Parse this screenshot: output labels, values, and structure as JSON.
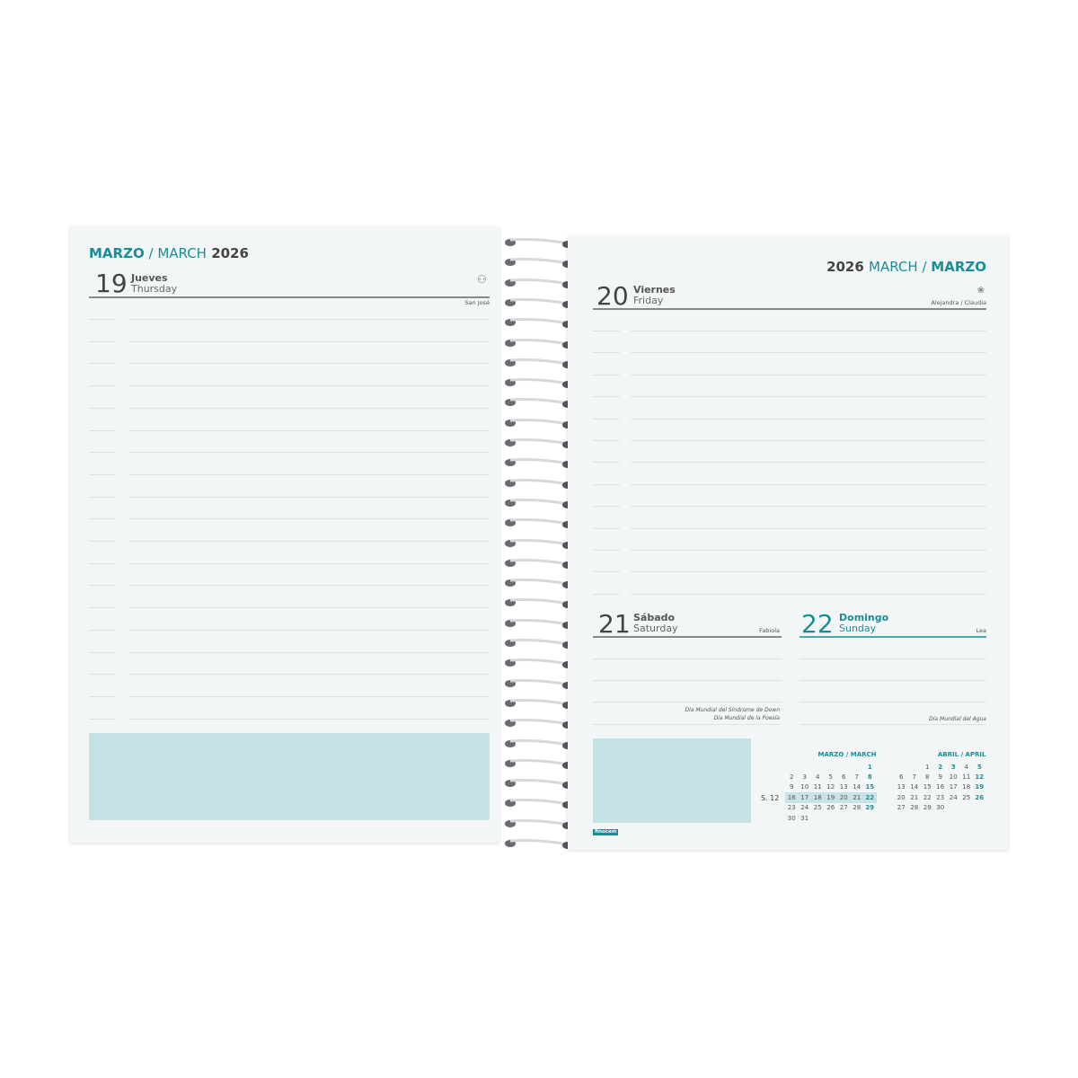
{
  "left_page": {
    "header": {
      "month_es": "MARZO",
      "sep": " / ",
      "month_en": "MARCH",
      "year": "2026"
    },
    "day": {
      "number": "19",
      "name_es": "Jueves",
      "name_en": "Thursday",
      "saint": "San José",
      "icon": "person-icon"
    }
  },
  "right_page": {
    "header": {
      "year": "2026",
      "month_en": "MARCH",
      "sep": " / ",
      "month_es": "MARZO"
    },
    "friday": {
      "number": "20",
      "name_es": "Viernes",
      "name_en": "Friday",
      "saint": "Alejandra / Claudia",
      "icon": "flower-icon"
    },
    "saturday": {
      "number": "21",
      "name_es": "Sábado",
      "name_en": "Saturday",
      "saint": "Fabiola",
      "events": [
        "Día Mundial del Síndrome de Down",
        "Día Mundial de la Poesía"
      ]
    },
    "sunday": {
      "number": "22",
      "name_es": "Domingo",
      "name_en": "Sunday",
      "saint": "Lea",
      "events": [
        "Día Mundial del Agua"
      ]
    },
    "brand": "finocam",
    "week_label": "S. 12",
    "calendars": [
      {
        "title": "MARZO / MARCH",
        "weeks": [
          [
            "",
            "",
            "",
            "",
            "",
            "",
            "1"
          ],
          [
            "2",
            "3",
            "4",
            "5",
            "6",
            "7",
            "8"
          ],
          [
            "9",
            "10",
            "11",
            "12",
            "13",
            "14",
            "15"
          ],
          [
            "16",
            "17",
            "18",
            "19",
            "20",
            "21",
            "22"
          ],
          [
            "23",
            "24",
            "25",
            "26",
            "27",
            "28",
            "29"
          ],
          [
            "30",
            "31",
            "",
            "",
            "",
            "",
            ""
          ]
        ],
        "highlight_week": 3
      },
      {
        "title": "ABRIL / APRIL",
        "weeks": [
          [
            "",
            "",
            "1",
            "2",
            "3",
            "4",
            "5"
          ],
          [
            "6",
            "7",
            "8",
            "9",
            "10",
            "11",
            "12"
          ],
          [
            "13",
            "14",
            "15",
            "16",
            "17",
            "18",
            "19"
          ],
          [
            "20",
            "21",
            "22",
            "23",
            "24",
            "25",
            "26"
          ],
          [
            "27",
            "28",
            "29",
            "30",
            "",
            "",
            ""
          ]
        ],
        "bold_days": [
          "2",
          "3"
        ]
      }
    ]
  },
  "colors": {
    "accent": "#1b8d96",
    "note_box": "#c6e1e4"
  }
}
